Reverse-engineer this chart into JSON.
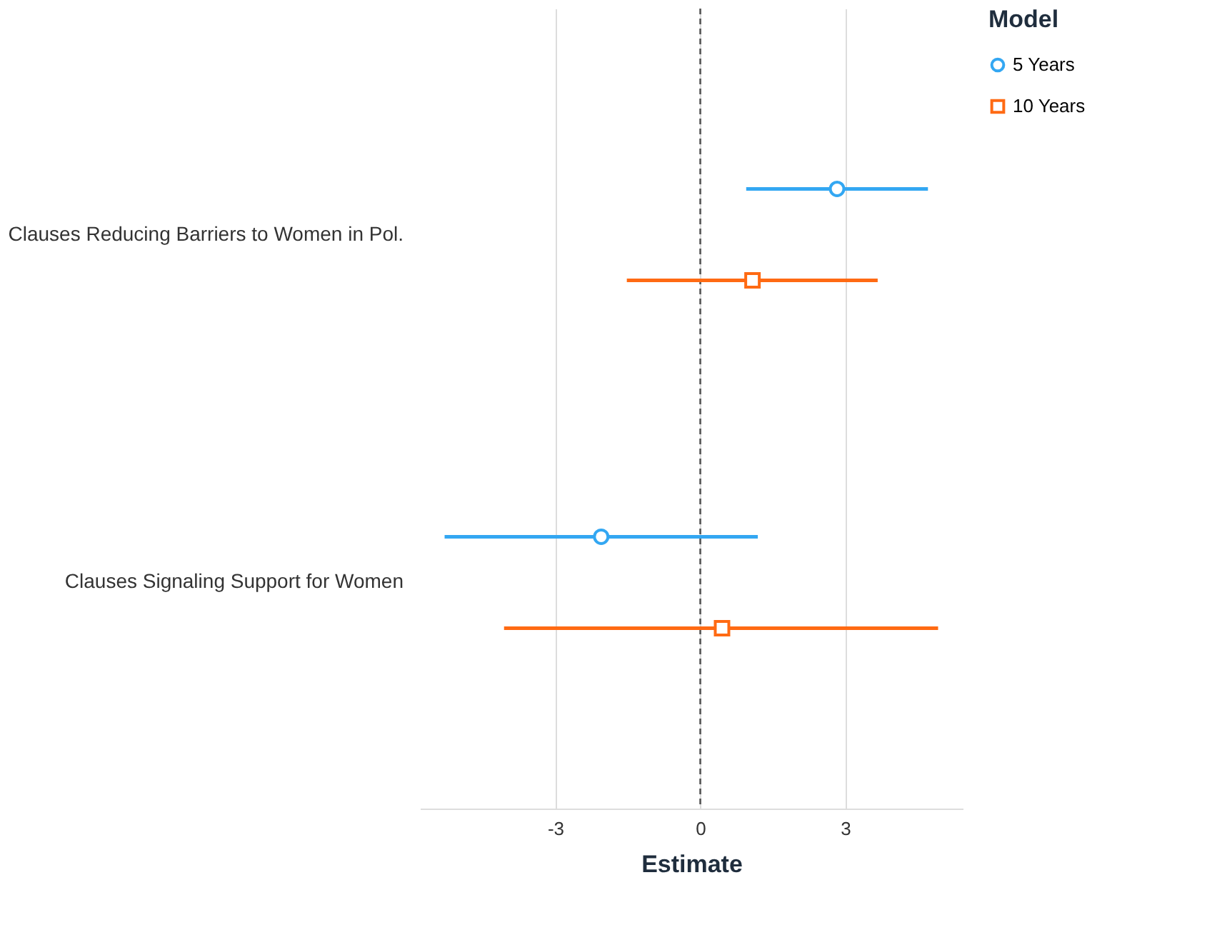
{
  "chart_data": {
    "type": "scatter",
    "orientation": "horizontal",
    "xlabel": "Estimate",
    "legend_title": "Model",
    "categories": [
      "Clauses Reducing Barriers to Women in Pol.",
      "Clauses Signaling Support for Women"
    ],
    "series": [
      {
        "name": "5 Years",
        "color": "#33a7f2",
        "marker": "circle",
        "values": [
          2.83,
          -2.05
        ],
        "errors": [
          [
            0.95,
            4.71
          ],
          [
            -5.29,
            1.19
          ]
        ]
      },
      {
        "name": "10 Years",
        "color": "#ff6a13",
        "marker": "square",
        "values": [
          1.08,
          0.45
        ],
        "errors": [
          [
            -1.52,
            3.67
          ],
          [
            -4.06,
            4.92
          ]
        ]
      }
    ],
    "xlim": [
      -5.8,
      5.43
    ],
    "xticks": [
      -3,
      0,
      3
    ],
    "ref_lines": [
      {
        "axis": "x",
        "value": 0,
        "line_style": "dashed",
        "color": "#555555"
      }
    ],
    "grid": "x",
    "legend": "right"
  }
}
